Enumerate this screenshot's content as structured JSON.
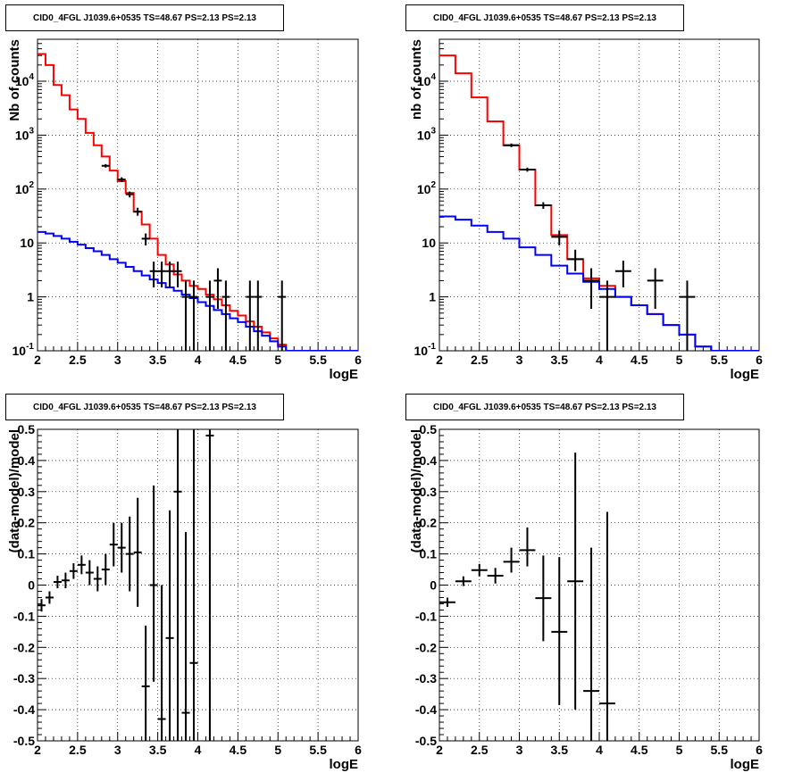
{
  "panels": [
    {
      "title": "CID0_4FGL J1039.6+0535 TS=48.67 PS=2.13 PS=2.13"
    },
    {
      "title": "CID0_4FGL J1039.6+0535 TS=48.67 PS=2.13 PS=2.13"
    },
    {
      "title": "CID0_4FGL J1039.6+0535 TS=48.67 PS=2.13 PS=2.13"
    },
    {
      "title": "CID0_4FGL J1039.6+0535 TS=48.67 PS=2.13 PS=2.13"
    }
  ],
  "chart_data": [
    {
      "type": "line",
      "title": "CID0_4FGL J1039.6+0535 TS=48.67 PS=2.13 PS=2.13",
      "xlabel": "logE",
      "ylabel": "Nb of counts",
      "xlim": [
        2,
        6
      ],
      "ylim": [
        0.1,
        60000
      ],
      "yscale": "log",
      "grid": true,
      "xticks": [
        "2",
        "2.5",
        "3",
        "3.5",
        "4",
        "4.5",
        "5",
        "5.5",
        "6"
      ],
      "yticks": [
        "10^-1",
        "1",
        "10",
        "10^2",
        "10^3",
        "10^4"
      ],
      "bin_width": 0.1,
      "series": [
        {
          "color": "#ff0000",
          "style": "step",
          "x": [
            2.0,
            2.1,
            2.2,
            2.3,
            2.4,
            2.5,
            2.6,
            2.7,
            2.8,
            2.9,
            3.0,
            3.1,
            3.2,
            3.3,
            3.4,
            3.5,
            3.6,
            3.7,
            3.8,
            3.9,
            4.0,
            4.1,
            4.2,
            4.3,
            4.4,
            4.5,
            4.6,
            4.7,
            4.8,
            4.9,
            5.0,
            5.1,
            5.2,
            5.3,
            5.4,
            5.5,
            5.6,
            5.7,
            5.8,
            5.9
          ],
          "values": [
            32000,
            20000,
            8500,
            5500,
            3000,
            2000,
            1100,
            650,
            400,
            220,
            140,
            85,
            38,
            22,
            12,
            6,
            4,
            2.6,
            2,
            1.6,
            1.4,
            1.1,
            0.9,
            0.7,
            0.55,
            0.45,
            0.35,
            0.28,
            0.22,
            0.17,
            0.13,
            0.1,
            0.1,
            0.1,
            0.1,
            0.1,
            0.1,
            0.1,
            0.1,
            0.1
          ]
        },
        {
          "color": "#0000ff",
          "style": "step",
          "x": [
            2.0,
            2.1,
            2.2,
            2.3,
            2.4,
            2.5,
            2.6,
            2.7,
            2.8,
            2.9,
            3.0,
            3.1,
            3.2,
            3.3,
            3.4,
            3.5,
            3.6,
            3.7,
            3.8,
            3.9,
            4.0,
            4.1,
            4.2,
            4.3,
            4.4,
            4.5,
            4.6,
            4.7,
            4.8,
            4.9,
            5.0,
            5.1,
            5.2,
            5.3,
            5.4,
            5.5,
            5.6,
            5.7,
            5.8,
            5.9
          ],
          "values": [
            16,
            15,
            13.5,
            12,
            10.5,
            9.3,
            8,
            7,
            6,
            5,
            4.3,
            3.6,
            3,
            2.5,
            2.1,
            1.8,
            1.5,
            1.3,
            1.1,
            0.95,
            0.8,
            0.68,
            0.57,
            0.48,
            0.4,
            0.34,
            0.28,
            0.23,
            0.19,
            0.15,
            0.12,
            0.1,
            0.1,
            0.1,
            0.1,
            0.1,
            0.1,
            0.1,
            0.1,
            0.1
          ]
        },
        {
          "name": "data",
          "color": "#000000",
          "style": "errorbar",
          "points": [
            {
              "x": 2.85,
              "y": 270,
              "lo": 250,
              "hi": 290
            },
            {
              "x": 3.05,
              "y": 150,
              "lo": 135,
              "hi": 165
            },
            {
              "x": 3.15,
              "y": 80,
              "lo": 70,
              "hi": 90
            },
            {
              "x": 3.25,
              "y": 38,
              "lo": 32,
              "hi": 45
            },
            {
              "x": 3.35,
              "y": 12,
              "lo": 9,
              "hi": 15
            },
            {
              "x": 3.45,
              "y": 3,
              "lo": 1.5,
              "hi": 4.5
            },
            {
              "x": 3.55,
              "y": 3,
              "lo": 1.5,
              "hi": 4.5
            },
            {
              "x": 3.65,
              "y": 3,
              "lo": 1.5,
              "hi": 4.5
            },
            {
              "x": 3.75,
              "y": 3,
              "lo": 1.5,
              "hi": 4.5
            },
            {
              "x": 3.85,
              "y": 1,
              "lo": 0.1,
              "hi": 2
            },
            {
              "x": 3.95,
              "y": 1,
              "lo": 0.1,
              "hi": 2
            },
            {
              "x": 4.15,
              "y": 1,
              "lo": 0.1,
              "hi": 2
            },
            {
              "x": 4.25,
              "y": 2,
              "lo": 0.6,
              "hi": 3.4
            },
            {
              "x": 4.35,
              "y": 1,
              "lo": 0.1,
              "hi": 2
            },
            {
              "x": 4.65,
              "y": 1,
              "lo": 0.1,
              "hi": 2
            },
            {
              "x": 4.75,
              "y": 1,
              "lo": 0.1,
              "hi": 2
            },
            {
              "x": 5.05,
              "y": 1,
              "lo": 0.1,
              "hi": 2
            }
          ]
        }
      ]
    },
    {
      "type": "line",
      "title": "CID0_4FGL J1039.6+0535 TS=48.67 PS=2.13 PS=2.13",
      "xlabel": "logE",
      "ylabel": "nb of counts",
      "xlim": [
        2,
        6
      ],
      "ylim": [
        0.1,
        60000
      ],
      "yscale": "log",
      "grid": true,
      "xticks": [
        "2",
        "2.5",
        "3",
        "3.5",
        "4",
        "4.5",
        "5",
        "5.5",
        "6"
      ],
      "yticks": [
        "10^-1",
        "1",
        "10",
        "10^2",
        "10^3",
        "10^4"
      ],
      "bin_width": 0.2,
      "series": [
        {
          "color": "#ff0000",
          "style": "step",
          "x": [
            2.0,
            2.2,
            2.4,
            2.6,
            2.8,
            3.0,
            3.2,
            3.4,
            3.6,
            3.8,
            4.0,
            4.2,
            4.4,
            4.6,
            4.8,
            5.0,
            5.2,
            5.4,
            5.6,
            5.8
          ],
          "values": [
            30000,
            14000,
            5000,
            1800,
            650,
            230,
            50,
            14,
            5,
            2.2,
            1.6,
            1,
            0.7,
            0.48,
            0.3,
            0.2,
            0.12,
            0.1,
            0.1,
            0.1
          ]
        },
        {
          "color": "#0000ff",
          "style": "step",
          "x": [
            2.0,
            2.2,
            2.4,
            2.6,
            2.8,
            3.0,
            3.2,
            3.4,
            3.6,
            3.8,
            4.0,
            4.2,
            4.4,
            4.6,
            4.8,
            5.0,
            5.2,
            5.4,
            5.6,
            5.8
          ],
          "values": [
            31,
            27,
            21,
            16,
            12,
            8.3,
            6,
            3.8,
            2.7,
            1.9,
            1.4,
            1,
            0.7,
            0.48,
            0.3,
            0.2,
            0.12,
            0.1,
            0.1,
            0.1
          ]
        },
        {
          "name": "data",
          "color": "#000000",
          "style": "errorbar",
          "points": [
            {
              "x": 2.9,
              "y": 650,
              "lo": 600,
              "hi": 700
            },
            {
              "x": 3.1,
              "y": 230,
              "lo": 210,
              "hi": 250
            },
            {
              "x": 3.3,
              "y": 50,
              "lo": 43,
              "hi": 57
            },
            {
              "x": 3.5,
              "y": 13,
              "lo": 9,
              "hi": 17
            },
            {
              "x": 3.7,
              "y": 5,
              "lo": 3,
              "hi": 7.5
            },
            {
              "x": 3.9,
              "y": 2,
              "lo": 0.6,
              "hi": 3.4
            },
            {
              "x": 4.1,
              "y": 1,
              "lo": 0.1,
              "hi": 2
            },
            {
              "x": 4.3,
              "y": 3,
              "lo": 1.5,
              "hi": 4.7
            },
            {
              "x": 4.7,
              "y": 2,
              "lo": 0.6,
              "hi": 3.4
            },
            {
              "x": 5.1,
              "y": 1,
              "lo": 0.1,
              "hi": 2
            }
          ]
        }
      ]
    },
    {
      "type": "scatter",
      "title": "CID0_4FGL J1039.6+0535 TS=48.67 PS=2.13 PS=2.13",
      "xlabel": "logE",
      "ylabel": "(data-model)/model",
      "xlim": [
        2,
        6
      ],
      "ylim": [
        -0.5,
        0.5
      ],
      "grid": true,
      "xticks": [
        "2",
        "2.5",
        "3",
        "3.5",
        "4",
        "4.5",
        "5",
        "5.5",
        "6"
      ],
      "yticks": [
        "-0.5",
        "-0.4",
        "-0.3",
        "-0.2",
        "-0.1",
        "0",
        "0.1",
        "0.2",
        "0.3",
        "0.4",
        "0.5"
      ],
      "bin_width": 0.1,
      "series": [
        {
          "name": "residuals",
          "color": "#000000",
          "style": "errorbar",
          "points": [
            {
              "x": 2.05,
              "y": -0.065,
              "lo": -0.085,
              "hi": -0.045
            },
            {
              "x": 2.15,
              "y": -0.04,
              "lo": -0.06,
              "hi": -0.02
            },
            {
              "x": 2.25,
              "y": 0.01,
              "lo": -0.01,
              "hi": 0.03
            },
            {
              "x": 2.35,
              "y": 0.015,
              "lo": -0.01,
              "hi": 0.04
            },
            {
              "x": 2.45,
              "y": 0.045,
              "lo": 0.02,
              "hi": 0.07
            },
            {
              "x": 2.55,
              "y": 0.065,
              "lo": 0.035,
              "hi": 0.095
            },
            {
              "x": 2.65,
              "y": 0.04,
              "lo": 0.0,
              "hi": 0.08
            },
            {
              "x": 2.75,
              "y": 0.02,
              "lo": -0.02,
              "hi": 0.06
            },
            {
              "x": 2.85,
              "y": 0.05,
              "lo": 0.0,
              "hi": 0.1
            },
            {
              "x": 2.95,
              "y": 0.13,
              "lo": 0.06,
              "hi": 0.2
            },
            {
              "x": 3.05,
              "y": 0.12,
              "lo": 0.04,
              "hi": 0.2
            },
            {
              "x": 3.15,
              "y": 0.1,
              "lo": -0.02,
              "hi": 0.22
            },
            {
              "x": 3.25,
              "y": 0.105,
              "lo": -0.07,
              "hi": 0.28
            },
            {
              "x": 3.35,
              "y": -0.325,
              "lo": -0.5,
              "hi": -0.13
            },
            {
              "x": 3.45,
              "y": 0.0,
              "lo": -0.31,
              "hi": 0.32
            },
            {
              "x": 3.55,
              "y": -0.43,
              "lo": -0.5,
              "hi": 0.0
            },
            {
              "x": 3.65,
              "y": -0.17,
              "lo": -0.5,
              "hi": 0.24
            },
            {
              "x": 3.75,
              "y": 0.3,
              "lo": -0.5,
              "hi": 0.5
            },
            {
              "x": 3.85,
              "y": -0.41,
              "lo": -0.5,
              "hi": 0.17
            },
            {
              "x": 3.95,
              "y": -0.25,
              "lo": -0.5,
              "hi": 0.5
            },
            {
              "x": 4.15,
              "y": 0.48,
              "lo": -0.5,
              "hi": 0.5
            }
          ]
        }
      ]
    },
    {
      "type": "scatter",
      "title": "CID0_4FGL J1039.6+0535 TS=48.67 PS=2.13 PS=2.13",
      "xlabel": "logE",
      "ylabel": "(data-model)/model",
      "xlim": [
        2,
        6
      ],
      "ylim": [
        -0.5,
        0.5
      ],
      "grid": true,
      "xticks": [
        "2",
        "2.5",
        "3",
        "3.5",
        "4",
        "4.5",
        "5",
        "5.5",
        "6"
      ],
      "yticks": [
        "-0.5",
        "-0.4",
        "-0.3",
        "-0.2",
        "-0.1",
        "0",
        "0.1",
        "0.2",
        "0.3",
        "0.4",
        "0.5"
      ],
      "bin_width": 0.2,
      "series": [
        {
          "name": "residuals",
          "color": "#000000",
          "style": "errorbar",
          "points": [
            {
              "x": 2.1,
              "y": -0.055,
              "lo": -0.07,
              "hi": -0.04
            },
            {
              "x": 2.3,
              "y": 0.012,
              "lo": -0.003,
              "hi": 0.028
            },
            {
              "x": 2.5,
              "y": 0.048,
              "lo": 0.028,
              "hi": 0.068
            },
            {
              "x": 2.7,
              "y": 0.03,
              "lo": 0.005,
              "hi": 0.055
            },
            {
              "x": 2.9,
              "y": 0.075,
              "lo": 0.04,
              "hi": 0.12
            },
            {
              "x": 3.1,
              "y": 0.112,
              "lo": 0.06,
              "hi": 0.185
            },
            {
              "x": 3.3,
              "y": -0.042,
              "lo": -0.18,
              "hi": 0.095
            },
            {
              "x": 3.5,
              "y": -0.15,
              "lo": -0.385,
              "hi": 0.09
            },
            {
              "x": 3.7,
              "y": 0.012,
              "lo": -0.4,
              "hi": 0.425
            },
            {
              "x": 3.9,
              "y": -0.34,
              "lo": -0.5,
              "hi": 0.12
            },
            {
              "x": 4.1,
              "y": -0.38,
              "lo": -0.5,
              "hi": 0.235
            }
          ]
        }
      ]
    }
  ]
}
